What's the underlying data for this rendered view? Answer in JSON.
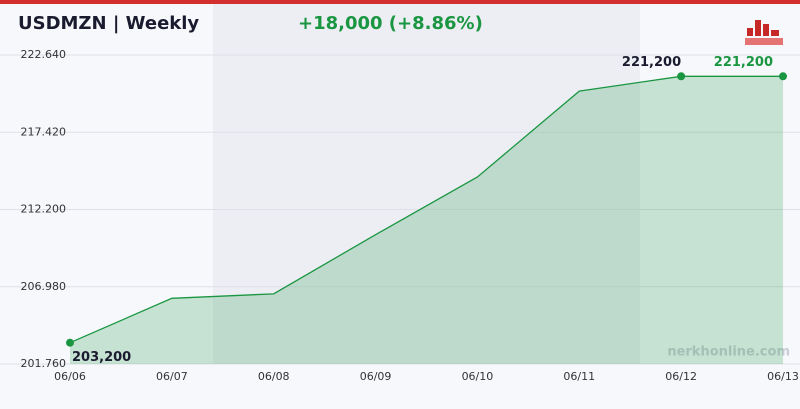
{
  "chart_data": {
    "type": "line",
    "title": "USDMZN  |  Weekly",
    "subtitle": "+18,000  (+8.86%)",
    "watermark": "nerkhonline.com",
    "categories": [
      "06/06",
      "06/07",
      "06/08",
      "06/09",
      "06/10",
      "06/11",
      "06/12",
      "06/13"
    ],
    "series": [
      {
        "name": "USDMZN",
        "color": "#1a9641",
        "values": [
          203200,
          206200,
          206500,
          210500,
          214400,
          220200,
          221200,
          221200
        ],
        "value_labels": [
          "203,200",
          null,
          null,
          null,
          null,
          null,
          "221,200",
          "221,200"
        ]
      }
    ],
    "ylim": [
      201760,
      222640
    ],
    "yticks": [
      {
        "value": 201760,
        "label": "201.760"
      },
      {
        "value": 206980,
        "label": "206.980"
      },
      {
        "value": 212200,
        "label": "212.200"
      },
      {
        "value": 217420,
        "label": "217.420"
      },
      {
        "value": 222640,
        "label": "222.640"
      }
    ],
    "grid": true
  }
}
